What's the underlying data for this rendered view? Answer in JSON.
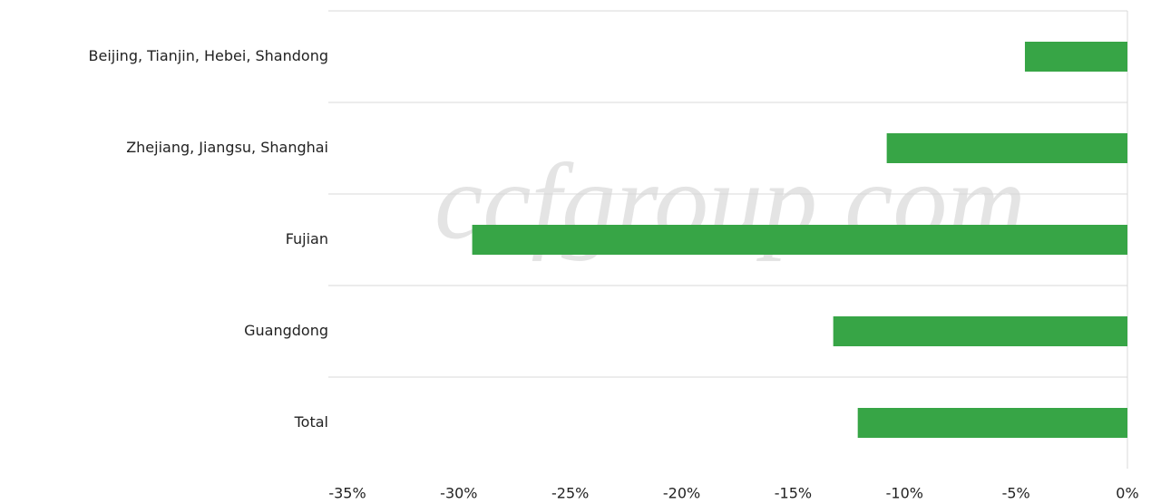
{
  "chart_data": {
    "type": "bar",
    "orientation": "horizontal",
    "watermark": "ccfgroup.com",
    "categories": [
      "Beijing, Tianjin, Hebei, Shandong",
      "Zhejiang, Jiangsu, Shanghai",
      "Fujian",
      "Guangdong",
      "Total"
    ],
    "values": [
      -4.6,
      -10.8,
      -29.4,
      -13.2,
      -12.1
    ],
    "color": "#37a546",
    "xlim": [
      -35,
      0
    ],
    "xticks": [
      {
        "value": -35,
        "label": "-35%"
      },
      {
        "value": -30,
        "label": "-30%"
      },
      {
        "value": -25,
        "label": "-25%"
      },
      {
        "value": -20,
        "label": "-20%"
      },
      {
        "value": -15,
        "label": "-15%"
      },
      {
        "value": -10,
        "label": "-10%"
      },
      {
        "value": -5,
        "label": "-5%"
      },
      {
        "value": 0,
        "label": "0%"
      }
    ],
    "grid": true
  }
}
